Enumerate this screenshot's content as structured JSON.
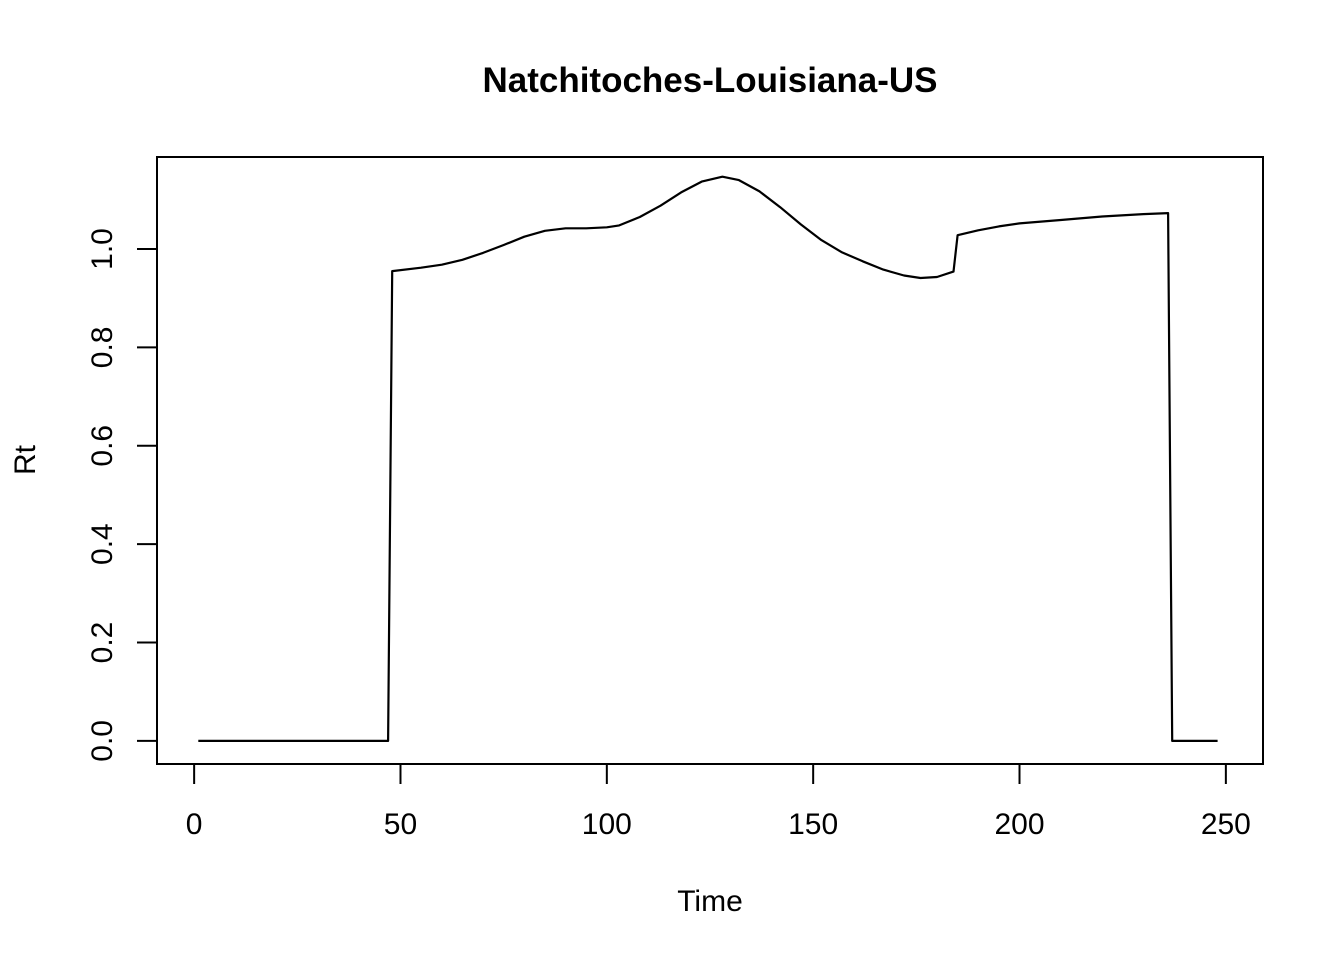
{
  "chart_data": {
    "type": "line",
    "title": "Natchitoches-Louisiana-US",
    "xlabel": "Time",
    "ylabel": "Rt",
    "xlim": [
      -9,
      259
    ],
    "ylim": [
      -0.047,
      1.187
    ],
    "x_ticks": [
      0,
      50,
      100,
      150,
      200,
      250
    ],
    "x_tick_labels": [
      "0",
      "50",
      "100",
      "150",
      "200",
      "250"
    ],
    "y_ticks": [
      0.0,
      0.2,
      0.4,
      0.6,
      0.8,
      1.0
    ],
    "y_tick_labels": [
      "0.0",
      "0.2",
      "0.4",
      "0.6",
      "0.8",
      "1.0"
    ],
    "grid": false,
    "legend": "none",
    "series": [
      {
        "color": "#000000",
        "points": [
          [
            1,
            0
          ],
          [
            47,
            0
          ],
          [
            48,
            0.955
          ],
          [
            55,
            0.962
          ],
          [
            60,
            0.968
          ],
          [
            65,
            0.978
          ],
          [
            70,
            0.992
          ],
          [
            75,
            1.008
          ],
          [
            80,
            1.025
          ],
          [
            85,
            1.037
          ],
          [
            90,
            1.042
          ],
          [
            95,
            1.042
          ],
          [
            100,
            1.044
          ],
          [
            103,
            1.048
          ],
          [
            108,
            1.065
          ],
          [
            113,
            1.088
          ],
          [
            118,
            1.115
          ],
          [
            123,
            1.137
          ],
          [
            128,
            1.147
          ],
          [
            132,
            1.14
          ],
          [
            137,
            1.117
          ],
          [
            142,
            1.085
          ],
          [
            147,
            1.05
          ],
          [
            152,
            1.018
          ],
          [
            157,
            0.993
          ],
          [
            162,
            0.975
          ],
          [
            167,
            0.958
          ],
          [
            172,
            0.946
          ],
          [
            176,
            0.941
          ],
          [
            180,
            0.943
          ],
          [
            184,
            0.954
          ],
          [
            185,
            1.028
          ],
          [
            190,
            1.038
          ],
          [
            195,
            1.046
          ],
          [
            200,
            1.052
          ],
          [
            210,
            1.059
          ],
          [
            220,
            1.066
          ],
          [
            230,
            1.071
          ],
          [
            236,
            1.073
          ],
          [
            237,
            0
          ],
          [
            248,
            0
          ]
        ]
      }
    ]
  }
}
